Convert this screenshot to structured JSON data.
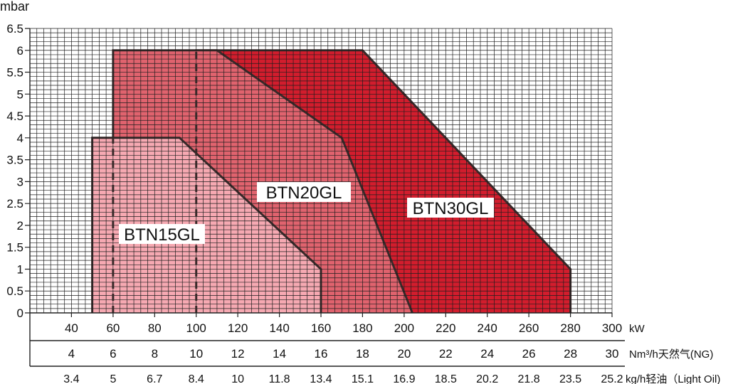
{
  "chart_data": {
    "type": "area",
    "ylabel": "mbar",
    "ylim": [
      0,
      6.5
    ],
    "yticks": [
      "0",
      "0.5",
      "1",
      "1.5",
      "2",
      "2.5",
      "3",
      "3.5",
      "4",
      "4.5",
      "5",
      "5.5",
      "6",
      "6.5"
    ],
    "xlim": [
      20,
      300
    ],
    "x_ticks": [
      40,
      60,
      80,
      100,
      120,
      140,
      160,
      180,
      200,
      220,
      240,
      260,
      280,
      300
    ],
    "x_axes": [
      {
        "label": "kW",
        "tick_labels": [
          "40",
          "60",
          "80",
          "100",
          "120",
          "140",
          "160",
          "180",
          "200",
          "220",
          "240",
          "260",
          "280",
          "300"
        ]
      },
      {
        "label": "Nm³/h天然气(NG)",
        "tick_labels": [
          "4",
          "6",
          "8",
          "10",
          "12",
          "14",
          "16",
          "18",
          "20",
          "22",
          "24",
          "26",
          "28",
          "30"
        ]
      },
      {
        "label": "kg/h轻油（Light Oil)",
        "tick_labels": [
          "3.4",
          "5",
          "6.7",
          "8.4",
          "10",
          "11.8",
          "13.4",
          "15.1",
          "16.9",
          "18.5",
          "20.2",
          "21.8",
          "23.5",
          "25.2"
        ]
      }
    ],
    "grid": true,
    "outline_color": "#3a2a2a",
    "series": [
      {
        "name": "BTN15GL",
        "color": "#f6a9b2",
        "points": [
          [
            50,
            0
          ],
          [
            50,
            4
          ],
          [
            92,
            4
          ],
          [
            160,
            1
          ],
          [
            160,
            0
          ]
        ]
      },
      {
        "name": "BTN20GL",
        "color": "#e0636e",
        "points": [
          [
            60,
            0
          ],
          [
            60,
            6
          ],
          [
            110,
            6
          ],
          [
            170,
            4
          ],
          [
            204,
            0
          ]
        ]
      },
      {
        "name": "BTN30GL",
        "color": "#d21d2d",
        "points": [
          [
            100,
            0
          ],
          [
            100,
            6
          ],
          [
            180,
            6
          ],
          [
            280,
            1
          ],
          [
            280,
            0
          ]
        ]
      }
    ],
    "dashed_lines": [
      {
        "x": 60,
        "y": [
          0,
          4
        ]
      },
      {
        "x": 100,
        "y": [
          0,
          6
        ]
      }
    ]
  }
}
